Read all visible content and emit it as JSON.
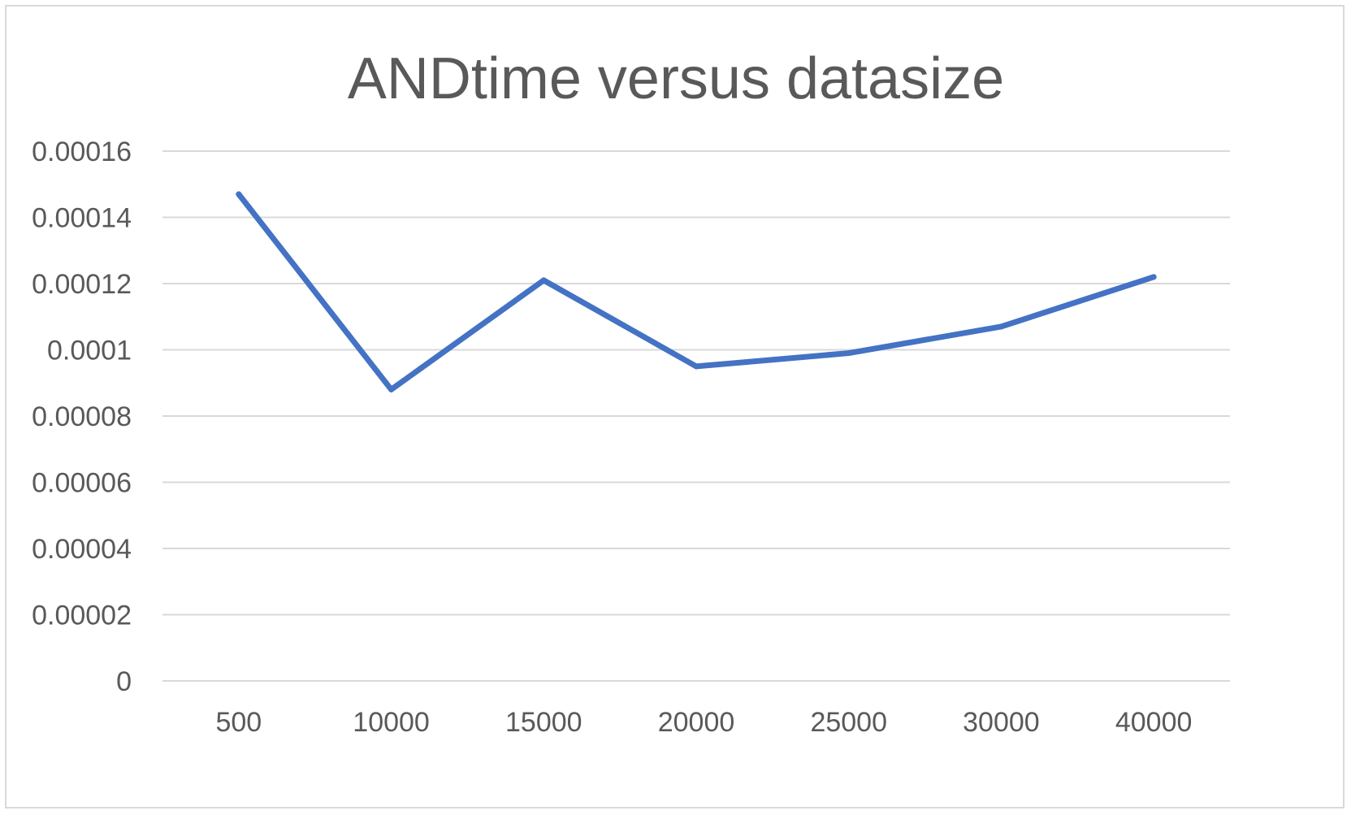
{
  "chart_data": {
    "type": "line",
    "title": "ANDtime versus datasize",
    "xlabel": "",
    "ylabel": "",
    "categories": [
      "500",
      "10000",
      "15000",
      "20000",
      "25000",
      "30000",
      "40000"
    ],
    "series": [
      {
        "values": [
          0.000147,
          8.8e-05,
          0.000121,
          9.5e-05,
          9.9e-05,
          0.000107,
          0.000122
        ]
      }
    ],
    "ylim": [
      0,
      0.00016
    ],
    "yticks": [
      "0",
      "0.00002",
      "0.00004",
      "0.00006",
      "0.00008",
      "0.0001",
      "0.00012",
      "0.00014",
      "0.00016"
    ],
    "grid": true,
    "legend": "none",
    "colors": {
      "line": "#4472c4",
      "grid": "#d9d9d9",
      "text": "#595959",
      "border": "#d9d9d9"
    }
  }
}
